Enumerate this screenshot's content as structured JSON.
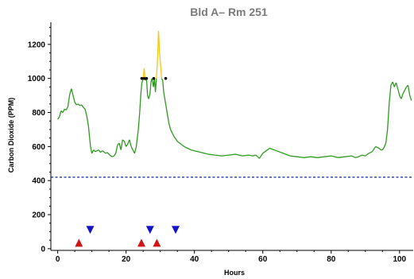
{
  "chart_data": {
    "type": "line",
    "title": "Bld A– Rm 251",
    "xlabel": "Hours",
    "ylabel": "Carbon Dioxide (PPM)",
    "xlim": [
      -2,
      104
    ],
    "ylim": [
      -10,
      1330
    ],
    "xticks": [
      0,
      20,
      40,
      60,
      80,
      100
    ],
    "yticks": [
      0,
      200,
      400,
      600,
      800,
      1000,
      1200
    ],
    "grid": false,
    "baseline": {
      "value": 420,
      "color": "#1a3bb8",
      "style": "dotted"
    },
    "threshold": 1000,
    "series": [
      {
        "color": "#2e9a1f",
        "highlight_color": "#f5c518",
        "x": [
          0.0,
          0.5,
          1.0,
          1.5,
          2.0,
          2.5,
          3.0,
          3.5,
          4.0,
          4.5,
          5.0,
          5.5,
          6.0,
          6.5,
          7.0,
          7.5,
          8.0,
          8.5,
          9.0,
          9.3,
          9.6,
          10.0,
          10.5,
          11.0,
          11.5,
          12.0,
          12.5,
          13.0,
          13.5,
          14.0,
          14.5,
          15.0,
          15.5,
          16.0,
          16.5,
          17.0,
          17.5,
          18.0,
          18.5,
          19.0,
          19.5,
          20.0,
          20.5,
          21.0,
          21.5,
          22.0,
          22.5,
          23.0,
          23.3,
          23.6,
          24.0,
          24.3,
          24.6,
          25.0,
          25.3,
          25.6,
          26.0,
          26.3,
          26.6,
          27.0,
          27.3,
          27.6,
          28.0,
          28.3,
          28.6,
          28.9,
          29.2,
          29.5,
          29.8,
          30.1,
          30.4,
          30.7,
          31.0,
          31.5,
          32.0,
          32.5,
          33.0,
          33.5,
          34.0,
          35.0,
          36.0,
          37.0,
          38.0,
          39.0,
          40.0,
          42.0,
          44.0,
          46.0,
          48.0,
          50.0,
          52.0,
          54.0,
          56.0,
          57.0,
          58.0,
          59.0,
          60.0,
          61.0,
          62.0,
          64.0,
          66.0,
          68.0,
          70.0,
          72.0,
          74.0,
          76.0,
          78.0,
          80.0,
          82.0,
          84.0,
          86.0,
          87.0,
          88.0,
          89.0,
          90.0,
          91.0,
          92.0,
          93.0,
          94.0,
          94.5,
          95.0,
          95.5,
          96.0,
          96.5,
          97.0,
          97.5,
          98.0,
          98.5,
          99.0,
          99.5,
          100.0,
          100.5,
          101.0,
          101.5,
          102.0,
          102.5,
          103.0,
          103.5
        ],
        "y": [
          760,
          775,
          810,
          800,
          820,
          815,
          835,
          905,
          940,
          900,
          860,
          845,
          850,
          840,
          845,
          830,
          820,
          780,
          720,
          660,
          600,
          560,
          580,
          570,
          575,
          580,
          565,
          575,
          570,
          560,
          565,
          555,
          545,
          540,
          545,
          560,
          610,
          620,
          580,
          640,
          630,
          600,
          615,
          640,
          600,
          580,
          560,
          600,
          650,
          700,
          800,
          900,
          970,
          1000,
          1060,
          990,
          990,
          900,
          880,
          910,
          980,
          1000,
          950,
          1000,
          920,
          1010,
          1100,
          1280,
          1150,
          1080,
          1000,
          990,
          920,
          860,
          800,
          740,
          700,
          680,
          660,
          630,
          615,
          600,
          590,
          580,
          575,
          565,
          555,
          550,
          545,
          550,
          555,
          545,
          550,
          545,
          550,
          530,
          560,
          575,
          590,
          575,
          560,
          545,
          540,
          535,
          540,
          535,
          540,
          545,
          535,
          540,
          545,
          535,
          540,
          550,
          545,
          560,
          570,
          600,
          590,
          580,
          580,
          595,
          620,
          700,
          860,
          960,
          980,
          950,
          975,
          940,
          900,
          880,
          910,
          930,
          950,
          960,
          900,
          870
        ]
      }
    ],
    "markers": [
      {
        "shape": "triangle-up",
        "color": "#d11414",
        "x": [
          6.2,
          24.5,
          29.0
        ],
        "y": [
          35,
          35,
          35
        ]
      },
      {
        "shape": "triangle-down",
        "color": "#1515c8",
        "x": [
          9.5,
          27.0,
          34.5
        ],
        "y": [
          110,
          110,
          110
        ]
      }
    ],
    "threshold_dots": {
      "color": "#000000",
      "x": [
        24.6,
        25.3,
        26.0,
        28.1,
        31.6
      ],
      "y": [
        1000,
        1000,
        1000,
        1000,
        1000
      ]
    }
  }
}
